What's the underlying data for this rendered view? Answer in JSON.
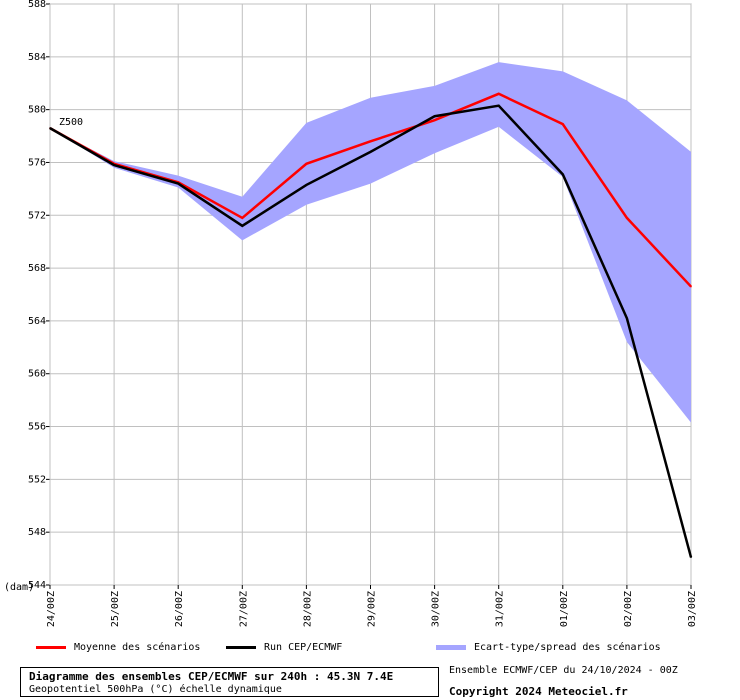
{
  "chart_data": {
    "type": "area",
    "title": "",
    "xlabel": "",
    "ylabel": "(dam)",
    "ylim": [
      544,
      588
    ],
    "yticks": [
      544,
      548,
      552,
      556,
      560,
      564,
      568,
      572,
      576,
      580,
      584,
      588
    ],
    "grid": true,
    "categories": [
      "24/00Z",
      "25/00Z",
      "26/00Z",
      "27/00Z",
      "28/00Z",
      "29/00Z",
      "30/00Z",
      "31/00Z",
      "01/00Z",
      "02/00Z",
      "03/00Z"
    ],
    "annotation": "Z500",
    "series": [
      {
        "name": "Ecart-type/spread des scénarios",
        "kind": "band",
        "color": "#a5a5ff",
        "upper": [
          578.6,
          576.1,
          575.0,
          573.4,
          579.0,
          580.9,
          581.8,
          583.6,
          582.9,
          580.7,
          576.8
        ],
        "lower": [
          578.6,
          575.6,
          574.1,
          570.1,
          572.8,
          574.4,
          576.7,
          578.7,
          574.9,
          562.4,
          556.3
        ]
      },
      {
        "name": "Moyenne des scénarios",
        "kind": "line",
        "color": "#ff0000",
        "values": [
          578.6,
          575.9,
          574.5,
          571.8,
          575.9,
          577.6,
          579.2,
          581.2,
          578.9,
          571.8,
          566.6
        ]
      },
      {
        "name": "Run CEP/ECMWF",
        "kind": "line",
        "color": "#000000",
        "values": [
          578.6,
          575.8,
          574.4,
          571.2,
          574.3,
          576.8,
          579.5,
          580.3,
          575.1,
          564.2,
          546.1
        ]
      }
    ]
  },
  "legend": {
    "mean_label": "Moyenne des scénarios",
    "run_label": "Run CEP/ECMWF",
    "spread_label": "Ecart-type/spread des scénarios"
  },
  "footer": {
    "title": "Diagramme des ensembles CEP/ECMWF sur 240h : 45.3N 7.4E",
    "subtitle": "Geopotentiel 500hPa (°C) échelle dynamique",
    "ensemble": "Ensemble ECMWF/CEP du 24/10/2024 - 00Z",
    "copyright": "Copyright 2024 Meteociel.fr"
  }
}
